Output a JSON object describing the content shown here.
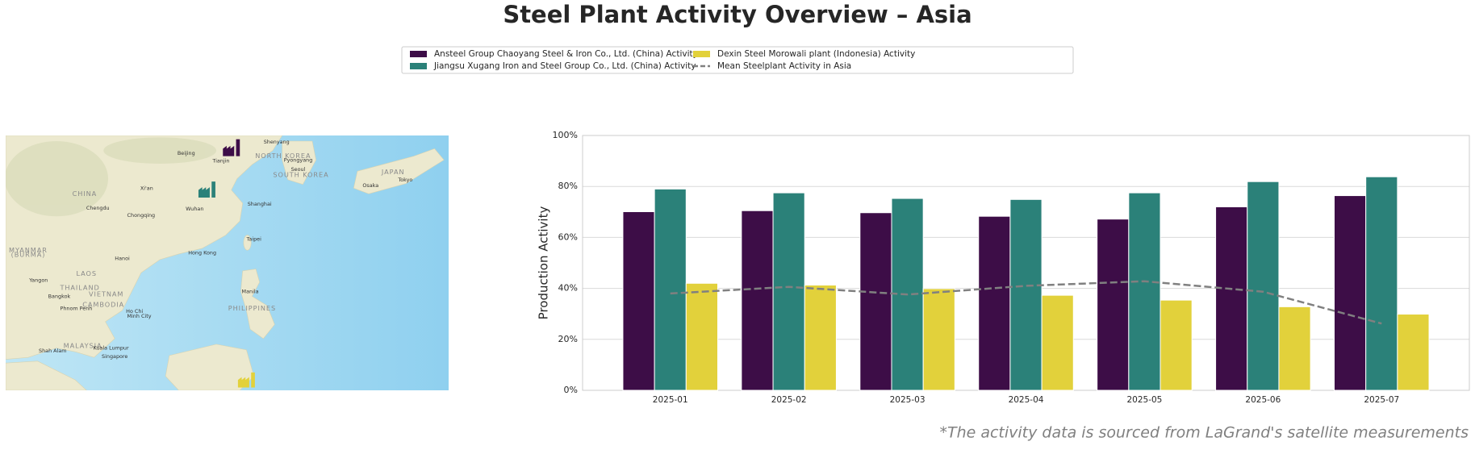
{
  "chart_data": {
    "type": "bar",
    "title": "Steel Plant Activity Overview – Asia",
    "ylabel": "Production Activity",
    "categories": [
      "2025-01",
      "2025-02",
      "2025-03",
      "2025-04",
      "2025-05",
      "2025-06",
      "2025-07"
    ],
    "series": [
      {
        "name": "Ansteel Group Chaoyang Steel & Iron Co., Ltd. (China) Activity",
        "color": "#3d0d47",
        "values": [
          70.1,
          70.5,
          69.7,
          68.3,
          67.2,
          72.0,
          76.4
        ]
      },
      {
        "name": "Jiangsu Xugang Iron and Steel Group Co., Ltd. (China) Activity",
        "color": "#2b8179",
        "values": [
          79.0,
          77.5,
          75.3,
          74.9,
          77.5,
          81.9,
          83.8
        ]
      },
      {
        "name": "Dexin Steel Morowali plant (Indonesia) Activity",
        "color": "#e2d13b",
        "values": [
          42.0,
          41.3,
          39.9,
          37.3,
          35.4,
          32.8,
          29.9
        ]
      },
      {
        "name": "Mean Steelplant Activity in Asia",
        "color": "#808080",
        "type": "line",
        "style": "dashed",
        "values": [
          38.0,
          40.6,
          37.6,
          41.0,
          42.8,
          38.7,
          26.2
        ]
      }
    ],
    "ylim": [
      0,
      100
    ],
    "yticks": [
      {
        "value": 0,
        "label": "0%"
      },
      {
        "value": 20,
        "label": "20%"
      },
      {
        "value": 40,
        "label": "40%"
      },
      {
        "value": 60,
        "label": "60%"
      },
      {
        "value": 80,
        "label": "80%"
      },
      {
        "value": 100,
        "label": "100%"
      }
    ],
    "grid": true,
    "legend": "top"
  },
  "map": {
    "labels": [
      "Shenyang",
      "Beijing",
      "NORTH KOREA",
      "Tianjin",
      "Pyongyang",
      "Seoul",
      "SOUTH KOREA",
      "JAPAN",
      "Tokyo",
      "Osaka",
      "CHINA",
      "Xi'an",
      "Chengdu",
      "Wuhan",
      "Shanghai",
      "Chongqing",
      "MYANMAR",
      "(BURMA)",
      "Taipei",
      "Hong Kong",
      "Hanoi",
      "LAOS",
      "Yangon",
      "THAILAND",
      "VIETNAM",
      "Bangkok",
      "CAMBODIA",
      "Manila",
      "Phnom Penh",
      "Ho Chi",
      "Minh City",
      "PHILIPPINES",
      "MALAYSIA",
      "Shah Alam",
      "Kuala Lumpur",
      "Singapore"
    ]
  },
  "footnote": "*The activity data is sourced from LaGrand's satellite measurements"
}
